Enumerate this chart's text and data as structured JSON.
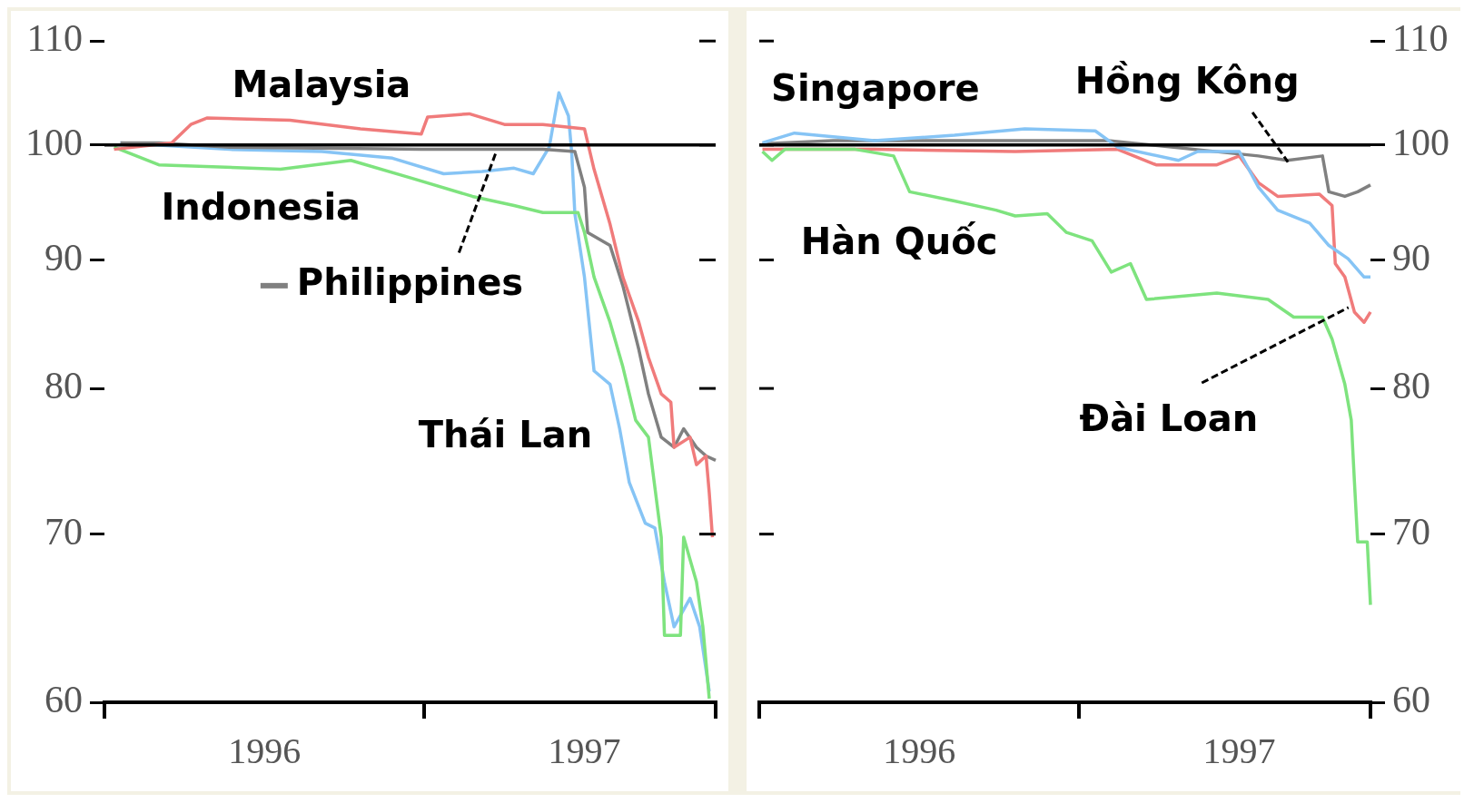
{
  "chart_data": [
    {
      "type": "line",
      "log": true,
      "marker": "none",
      "grid": false,
      "xlim": [
        1996,
        1997.91
      ],
      "xticks": [
        {
          "value": 1996,
          "label": null
        },
        {
          "value": 1996.5,
          "label": "1996"
        },
        {
          "value": 1997,
          "label": null
        },
        {
          "value": 1997.5,
          "label": "1997"
        },
        {
          "value": 1997.91,
          "label": null
        }
      ],
      "ylim": [
        60,
        110
      ],
      "yticks": [
        60,
        70,
        80,
        90,
        100,
        110
      ],
      "ref_lines": [
        {
          "axis": "y",
          "value": 100,
          "color": "#000000"
        }
      ],
      "series": [
        {
          "name": "Malaysia",
          "color": "#f07b7b",
          "x": [
            1996.03,
            1996.21,
            1996.27,
            1996.32,
            1996.58,
            1996.8,
            1996.99,
            1997.01,
            1997.14,
            1997.25,
            1997.37,
            1997.5,
            1997.53,
            1997.58,
            1997.62,
            1997.67,
            1997.7,
            1997.74,
            1997.77,
            1997.78,
            1997.83,
            1997.85,
            1997.88,
            1997.89,
            1997.9
          ],
          "values": [
            99.6,
            100.2,
            101.9,
            102.5,
            102.3,
            101.5,
            101,
            102.6,
            102.9,
            101.9,
            101.9,
            101.5,
            97.8,
            93,
            88.6,
            85,
            82.3,
            79.6,
            79,
            75.8,
            76.5,
            74.6,
            75.2,
            72.7,
            69.8
          ]
        },
        {
          "name": "Indonesia",
          "color": "#7ee37e",
          "x": [
            1996.03,
            1996.17,
            1996.55,
            1996.77,
            1996.96,
            1997.15,
            1997.28,
            1997.37,
            1997.48,
            1997.5,
            1997.53,
            1997.58,
            1997.62,
            1997.66,
            1997.7,
            1997.74,
            1997.75,
            1997.8,
            1997.81,
            1997.85,
            1997.87,
            1997.89
          ],
          "values": [
            99.8,
            98.2,
            97.8,
            98.6,
            97,
            95.4,
            94.6,
            94,
            94,
            92.3,
            88.6,
            85,
            81.6,
            77.7,
            76.5,
            69.8,
            63.8,
            63.8,
            69.8,
            67,
            64.3,
            60.2
          ]
        },
        {
          "name": "Philippines",
          "color": "#808080",
          "x": [
            1996.05,
            1996.17,
            1996.39,
            1996.99,
            1997.37,
            1997.47,
            1997.5,
            1997.51,
            1997.58,
            1997.62,
            1997.67,
            1997.7,
            1997.74,
            1997.78,
            1997.81,
            1997.85,
            1997.88,
            1997.91
          ],
          "values": [
            100.2,
            100.2,
            99.8,
            99.6,
            99.6,
            99.4,
            96.2,
            92.3,
            91.2,
            87.9,
            82.9,
            79.6,
            76.5,
            75.8,
            77.1,
            75.8,
            75.2,
            74.9
          ]
        },
        {
          "name": "Thái Lan",
          "color": "#86c4f5",
          "x": [
            1996.05,
            1996.39,
            1996.68,
            1996.9,
            1997.06,
            1997.18,
            1997.28,
            1997.34,
            1997.39,
            1997.42,
            1997.45,
            1997.46,
            1997.47,
            1997.5,
            1997.53,
            1997.58,
            1997.61,
            1997.64,
            1997.69,
            1997.72,
            1997.75,
            1997.78,
            1997.83,
            1997.86,
            1997.89
          ],
          "values": [
            100.2,
            99.6,
            99.4,
            98.8,
            97.4,
            97.6,
            97.9,
            97.4,
            99.8,
            104.9,
            102.7,
            99.4,
            93.9,
            88.6,
            81.3,
            80.3,
            77.1,
            73.4,
            70.7,
            70.4,
            67,
            64.3,
            66,
            64.3,
            60.6
          ]
        }
      ]
    },
    {
      "type": "line",
      "log": "y2",
      "marker": "none",
      "grid": false,
      "xlim": [
        1996,
        1997.91
      ],
      "xticks": [
        {
          "value": 1996,
          "label": null
        },
        {
          "value": 1996.5,
          "label": "1996"
        },
        {
          "value": 1997,
          "label": null
        },
        {
          "value": 1997.5,
          "label": "1997"
        },
        {
          "value": 1997.91,
          "label": null
        }
      ],
      "y2lim": [
        60,
        110
      ],
      "y2ticks": [
        60,
        70,
        80,
        90,
        100,
        110
      ],
      "ref_lines": [
        {
          "axis": "y2",
          "value": 100,
          "color": "#000000"
        }
      ],
      "series": [
        {
          "name": "Singapore",
          "color": "#86c4f5",
          "axis": "y2",
          "x": [
            1996.01,
            1996.11,
            1996.36,
            1996.61,
            1996.83,
            1997.05,
            1997.12,
            1997.31,
            1997.37,
            1997.5,
            1997.56,
            1997.62,
            1997.72,
            1997.78,
            1997.84,
            1997.89,
            1997.91
          ],
          "values": [
            100.2,
            101.1,
            100.4,
            100.9,
            101.5,
            101.3,
            99.8,
            98.6,
            99.4,
            99.4,
            96.2,
            94.2,
            93.1,
            91.2,
            90.1,
            88.6,
            88.6
          ]
        },
        {
          "name": "Hồng Kông",
          "color": "#808080",
          "axis": "y2",
          "x": [
            1996.01,
            1996.23,
            1997.09,
            1997.56,
            1997.65,
            1997.76,
            1997.78,
            1997.83,
            1997.87,
            1997.91
          ],
          "values": [
            100.1,
            100.4,
            100.4,
            99,
            98.6,
            99,
            95.8,
            95.4,
            95.8,
            96.4
          ]
        },
        {
          "name": "Hàn Quốc",
          "color": "#7ee37e",
          "axis": "y2",
          "x": [
            1996.01,
            1996.04,
            1996.08,
            1996.3,
            1996.42,
            1996.47,
            1996.61,
            1996.74,
            1996.8,
            1996.9,
            1996.96,
            1997.04,
            1997.1,
            1997.16,
            1997.21,
            1997.43,
            1997.59,
            1997.67,
            1997.76,
            1997.79,
            1997.83,
            1997.85,
            1997.86,
            1997.87,
            1997.9,
            1997.91
          ],
          "values": [
            99.4,
            98.6,
            99.6,
            99.6,
            99,
            95.8,
            95,
            94.2,
            93.7,
            93.9,
            92.3,
            91.6,
            89,
            89.7,
            86.8,
            87.3,
            86.8,
            85.4,
            85.4,
            83.7,
            80.3,
            77.7,
            73.4,
            69.5,
            69.5,
            65.6
          ]
        },
        {
          "name": "Đài Loan",
          "color": "#f07b7b",
          "axis": "y2",
          "x": [
            1996.01,
            1996.36,
            1996.8,
            1997.12,
            1997.24,
            1997.43,
            1997.5,
            1997.56,
            1997.62,
            1997.75,
            1997.79,
            1997.8,
            1997.83,
            1997.86,
            1997.89,
            1997.91
          ],
          "values": [
            99.6,
            99.6,
            99.4,
            99.6,
            98.2,
            98.2,
            99,
            96.6,
            95.4,
            95.6,
            94.6,
            89.7,
            88.6,
            85.8,
            85,
            85.8
          ]
        }
      ]
    }
  ]
}
